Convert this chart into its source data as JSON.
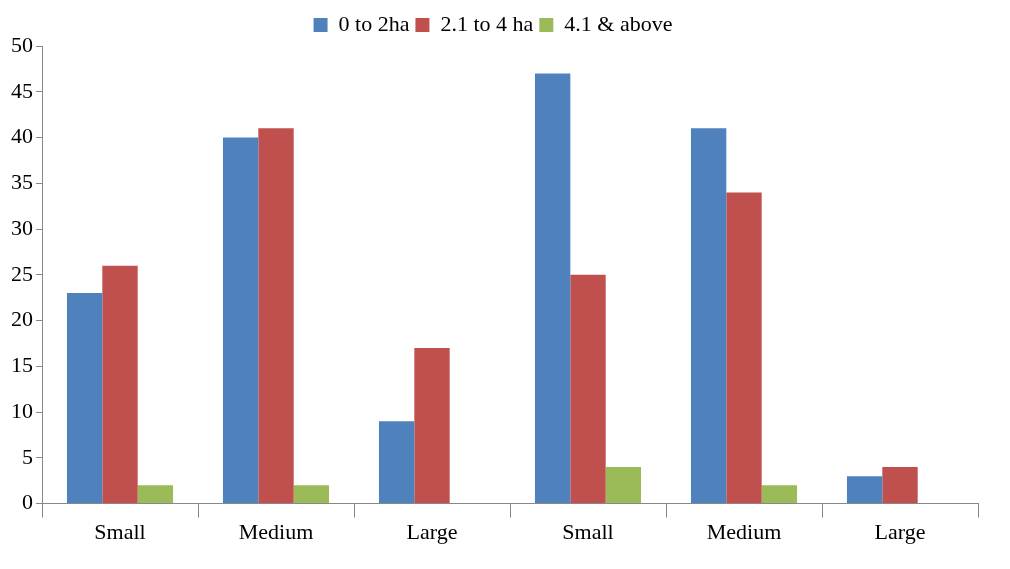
{
  "chart_data": {
    "type": "bar",
    "categories": [
      "Small",
      "Medium",
      "Large",
      "Small",
      "Medium",
      "Large"
    ],
    "series": [
      {
        "name": "0 to 2ha",
        "color": "#4f81bd",
        "values": [
          23,
          40,
          9,
          47,
          41,
          3
        ]
      },
      {
        "name": "2.1 to 4 ha",
        "color": "#c0504d",
        "values": [
          26,
          41,
          17,
          25,
          34,
          4
        ]
      },
      {
        "name": "4.1 & above",
        "color": "#9bbb59",
        "values": [
          2,
          2,
          0,
          4,
          2,
          0
        ]
      }
    ],
    "ylim": [
      0,
      50
    ],
    "yticks": [
      0,
      5,
      10,
      15,
      20,
      25,
      30,
      35,
      40,
      45,
      50
    ],
    "grid": false,
    "legend": "top"
  }
}
